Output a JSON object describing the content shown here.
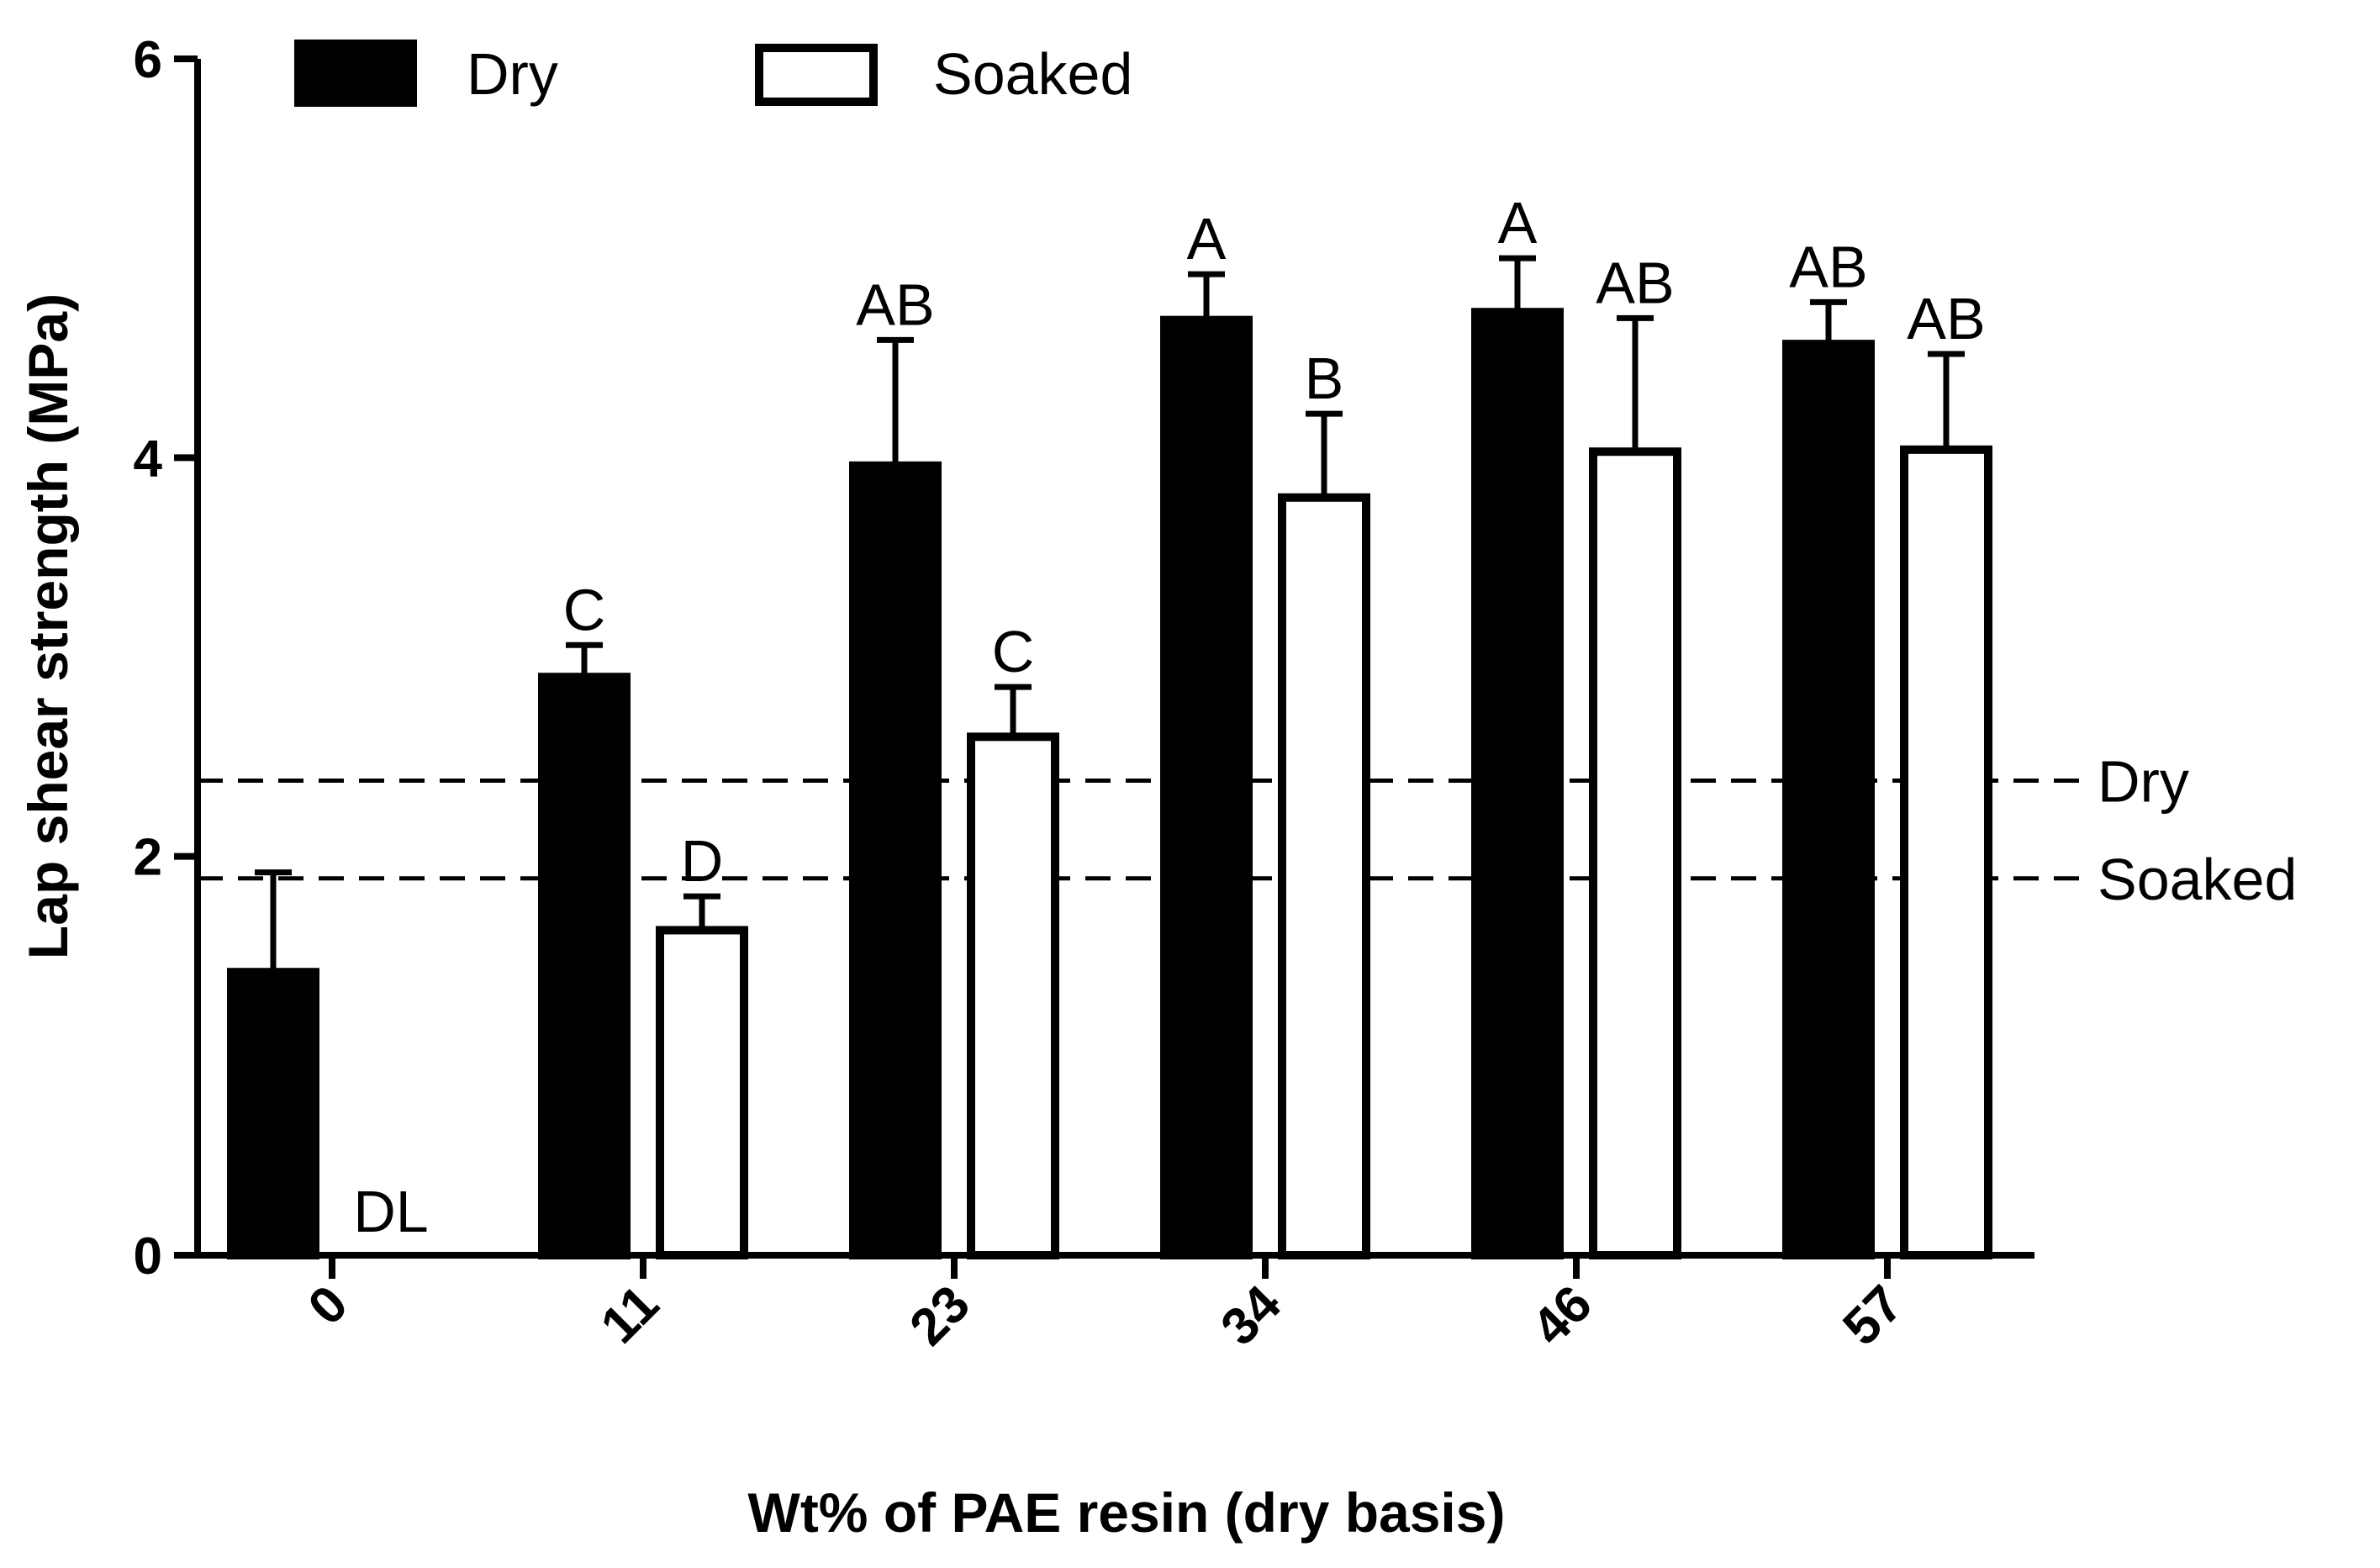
{
  "chart_data": {
    "type": "bar",
    "title": "",
    "xlabel": "Wt% of PAE resin (dry basis)",
    "ylabel": "Lap shear strength (MPa)",
    "ylim": [
      0,
      6
    ],
    "yticks": [
      "0",
      "2",
      "4",
      "6"
    ],
    "categories": [
      "0",
      "11",
      "23",
      "34",
      "46",
      "57"
    ],
    "legend_position": "top-left",
    "series": [
      {
        "name": "Dry",
        "fill": "#000000",
        "values": [
          1.42,
          2.9,
          3.96,
          4.69,
          4.73,
          4.57
        ],
        "errors": [
          0.5,
          0.16,
          0.63,
          0.23,
          0.27,
          0.21
        ],
        "labels": [
          "",
          "C",
          "AB",
          "A",
          "A",
          "AB"
        ]
      },
      {
        "name": "Soaked",
        "fill": "#ffffff",
        "values": [
          null,
          1.63,
          2.6,
          3.8,
          4.03,
          4.04
        ],
        "errors": [
          null,
          0.17,
          0.25,
          0.42,
          0.67,
          0.48
        ],
        "labels": [
          "DL",
          "D",
          "C",
          "B",
          "AB",
          "AB"
        ]
      }
    ],
    "reference_lines": [
      {
        "label": "Dry",
        "value": 2.38
      },
      {
        "label": "Soaked",
        "value": 1.89
      }
    ]
  }
}
